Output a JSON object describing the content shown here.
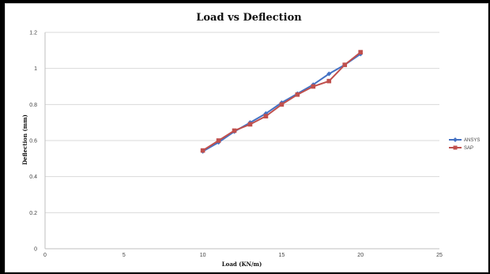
{
  "chart_data": {
    "type": "line",
    "title": "Load vs Deflection",
    "xlabel": "Load (KN/m)",
    "ylabel": "Deflection (mm)",
    "xlim": [
      0,
      25
    ],
    "ylim": [
      0,
      1.2
    ],
    "x_ticks": [
      0,
      5,
      10,
      15,
      20,
      25
    ],
    "y_ticks": [
      0,
      0.2,
      0.4,
      0.6,
      0.8,
      1,
      1.2
    ],
    "grid": true,
    "legend_position": "right",
    "x": [
      10,
      11,
      12,
      13,
      14,
      15,
      16,
      17,
      18,
      19,
      20
    ],
    "series": [
      {
        "name": "ANSYS",
        "color": "#4472C4",
        "marker": "diamond",
        "values": [
          0.54,
          0.59,
          0.65,
          0.7,
          0.75,
          0.81,
          0.86,
          0.91,
          0.97,
          1.02,
          1.08
        ]
      },
      {
        "name": "SAP",
        "color": "#C0504D",
        "marker": "square",
        "values": [
          0.545,
          0.6,
          0.655,
          0.69,
          0.735,
          0.8,
          0.855,
          0.9,
          0.93,
          1.02,
          1.09
        ]
      }
    ]
  }
}
